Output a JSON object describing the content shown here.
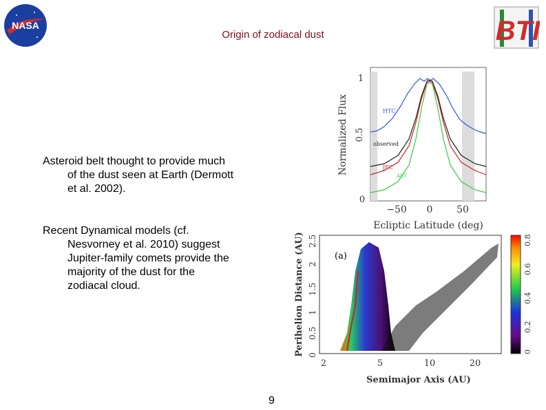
{
  "slide": {
    "title": "Origin of zodiacal dust",
    "page_number": "9"
  },
  "logos": {
    "left": {
      "icon": "nasa-logo",
      "text": "NASA"
    },
    "right": {
      "icon": "bti-logo",
      "text": "BTI"
    }
  },
  "bullets": [
    {
      "first_line": "Asteroid belt thought to provide much",
      "continuation": [
        "of the dust seen at Earth (Dermott",
        "et al. 2002)."
      ]
    },
    {
      "first_line": "Recent Dynamical models (cf.",
      "continuation": [
        "Nesvorney et al. 2010) suggest",
        "Jupiter-family comets provide the",
        "majority of the dust for the",
        "zodiacal cloud."
      ]
    }
  ],
  "figures": {
    "top": {
      "ylabel": "Normalized Flux",
      "xlabel": "Ecliptic Latitude (deg)",
      "yticks": [
        "0",
        "0.5",
        "1"
      ],
      "xticks": [
        "−50",
        "0",
        "50"
      ],
      "labels": {
        "htc": "HTC",
        "observed": "observed",
        "jfc": "JFC",
        "ast": "AST"
      },
      "colors": {
        "htc": "#3355dd",
        "observed": "#222222",
        "jfc": "#cc2222",
        "ast": "#33cc44",
        "shade": "#d8d8d8"
      }
    },
    "bottom": {
      "ylabel": "Perihelion Distance (AU)",
      "xlabel": "Semimajor Axis (AU)",
      "panel_label": "(a)",
      "yticks": [
        "0",
        "0.5",
        "1",
        "1.5",
        "2",
        "2.5"
      ],
      "xticks": [
        "2",
        "5",
        "10",
        "20"
      ],
      "colorbar_ticks": [
        "0",
        "0.2",
        "0.4",
        "0.6",
        "0.8"
      ]
    }
  }
}
